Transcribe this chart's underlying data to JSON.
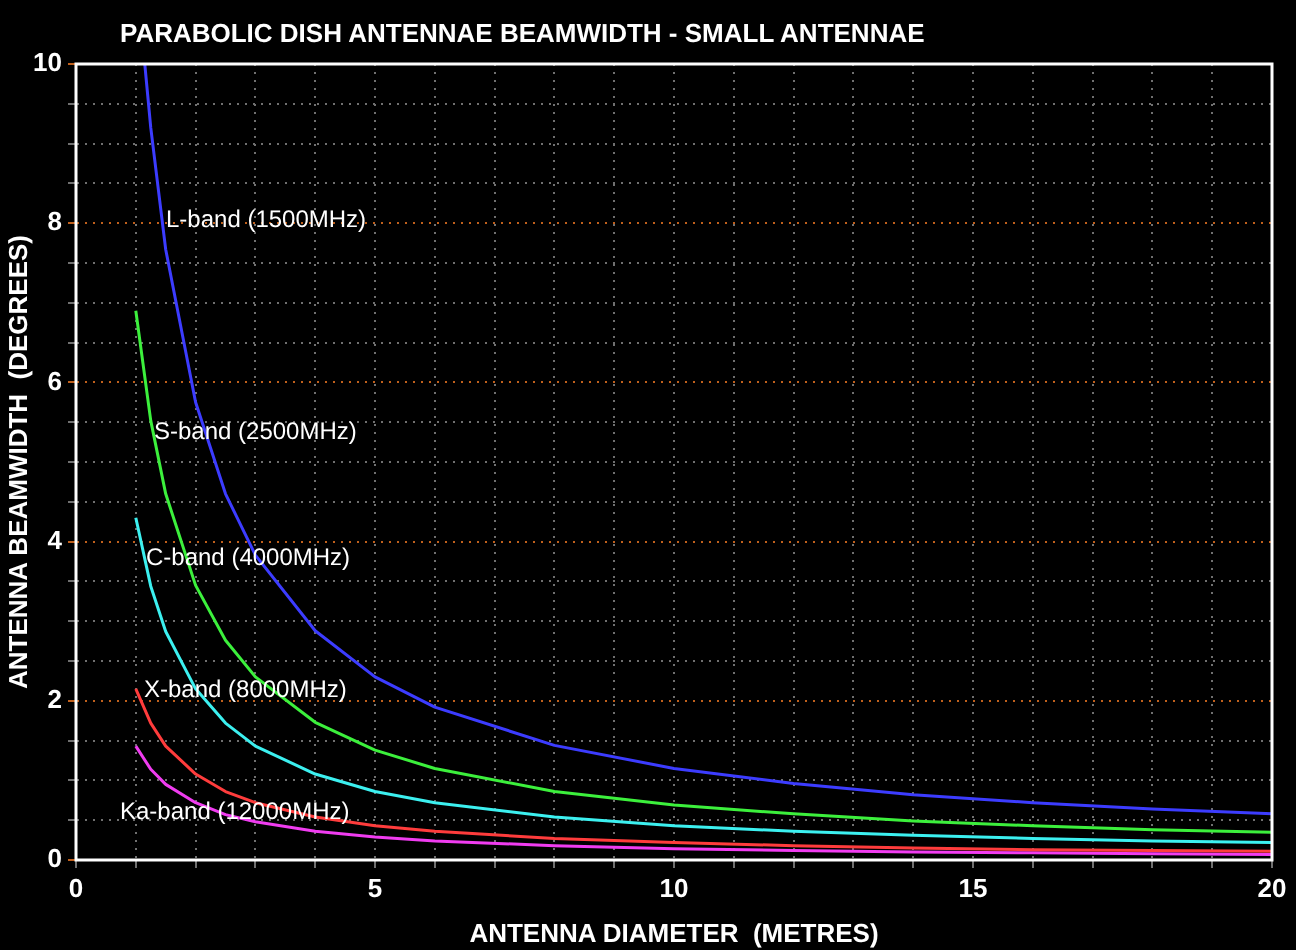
{
  "chart_data": {
    "type": "line",
    "title": "PARABOLIC DISH ANTENNAE BEAMWIDTH - SMALL ANTENNAE",
    "xlabel": "ANTENNA DIAMETER  (METRES)",
    "ylabel": "ANTENNA BEAMWIDTH  (DEGREES)",
    "xlim": [
      0,
      20
    ],
    "ylim": [
      0,
      10
    ],
    "xticks": [
      0,
      {
        "value": 1,
        "label": null
      },
      {
        "value": 2,
        "label": null
      },
      {
        "value": 3,
        "label": null
      },
      {
        "value": 4,
        "label": null
      },
      5,
      {
        "value": 6,
        "label": null
      },
      {
        "value": 7,
        "label": null
      },
      {
        "value": 8,
        "label": null
      },
      {
        "value": 9,
        "label": null
      },
      10,
      {
        "value": 11,
        "label": null
      },
      {
        "value": 12,
        "label": null
      },
      {
        "value": 13,
        "label": null
      },
      {
        "value": 14,
        "label": null
      },
      15,
      {
        "value": 16,
        "label": null
      },
      {
        "value": 17,
        "label": null
      },
      {
        "value": 18,
        "label": null
      },
      {
        "value": 19,
        "label": null
      },
      20
    ],
    "yticks": [
      0,
      {
        "value": 0.5,
        "label": null
      },
      {
        "value": 1,
        "label": null
      },
      {
        "value": 1.5,
        "label": null
      },
      2,
      {
        "value": 2.5,
        "label": null
      },
      {
        "value": 3,
        "label": null
      },
      {
        "value": 3.5,
        "label": null
      },
      4,
      {
        "value": 4.5,
        "label": null
      },
      {
        "value": 5,
        "label": null
      },
      {
        "value": 5.5,
        "label": null
      },
      6,
      {
        "value": 6.5,
        "label": null
      },
      {
        "value": 7,
        "label": null
      },
      {
        "value": 7.5,
        "label": null
      },
      8,
      {
        "value": 8.5,
        "label": null
      },
      {
        "value": 9,
        "label": null
      },
      {
        "value": 9.5,
        "label": null
      },
      10
    ],
    "grid": true,
    "legend": false,
    "marker": "none",
    "line_style": "solid",
    "series": [
      {
        "name": "L-band (1500MHz)",
        "color": "#3c3cff",
        "x": [
          1.15,
          1.25,
          1.5,
          2,
          2.5,
          3,
          4,
          5,
          6,
          8,
          10,
          12,
          14,
          16,
          18,
          20
        ],
        "values": [
          10.0,
          9.2,
          7.67,
          5.75,
          4.6,
          3.83,
          2.88,
          2.3,
          1.92,
          1.44,
          1.15,
          0.96,
          0.82,
          0.72,
          0.64,
          0.58
        ]
      },
      {
        "name": "S-band (2500MHz)",
        "color": "#3cf03c",
        "x": [
          1,
          1.25,
          1.5,
          2,
          2.5,
          3,
          4,
          5,
          6,
          8,
          10,
          12,
          14,
          16,
          18,
          20
        ],
        "values": [
          6.9,
          5.52,
          4.6,
          3.45,
          2.76,
          2.3,
          1.73,
          1.38,
          1.15,
          0.86,
          0.69,
          0.58,
          0.49,
          0.43,
          0.38,
          0.35
        ]
      },
      {
        "name": "C-band (4000MHz)",
        "color": "#3cf0f0",
        "x": [
          1,
          1.25,
          1.5,
          2,
          2.5,
          3,
          4,
          5,
          6,
          8,
          10,
          12,
          14,
          16,
          18,
          20
        ],
        "values": [
          4.3,
          3.44,
          2.87,
          2.15,
          1.72,
          1.43,
          1.08,
          0.86,
          0.72,
          0.54,
          0.43,
          0.36,
          0.31,
          0.27,
          0.24,
          0.22
        ]
      },
      {
        "name": "X-band (8000MHz)",
        "color": "#ff3c3c",
        "x": [
          1,
          1.25,
          1.5,
          2,
          2.5,
          3,
          4,
          5,
          6,
          8,
          10,
          12,
          14,
          16,
          18,
          20
        ],
        "values": [
          2.15,
          1.72,
          1.43,
          1.08,
          0.86,
          0.72,
          0.54,
          0.43,
          0.36,
          0.27,
          0.22,
          0.18,
          0.15,
          0.13,
          0.12,
          0.11
        ]
      },
      {
        "name": "Ka-band (12000MHz)",
        "color": "#f03cf0",
        "x": [
          1,
          1.25,
          1.5,
          2,
          2.5,
          3,
          4,
          5,
          6,
          8,
          10,
          12,
          14,
          16,
          18,
          20
        ],
        "values": [
          1.43,
          1.14,
          0.95,
          0.72,
          0.57,
          0.48,
          0.36,
          0.29,
          0.24,
          0.18,
          0.14,
          0.12,
          0.1,
          0.09,
          0.08,
          0.07
        ]
      }
    ]
  }
}
